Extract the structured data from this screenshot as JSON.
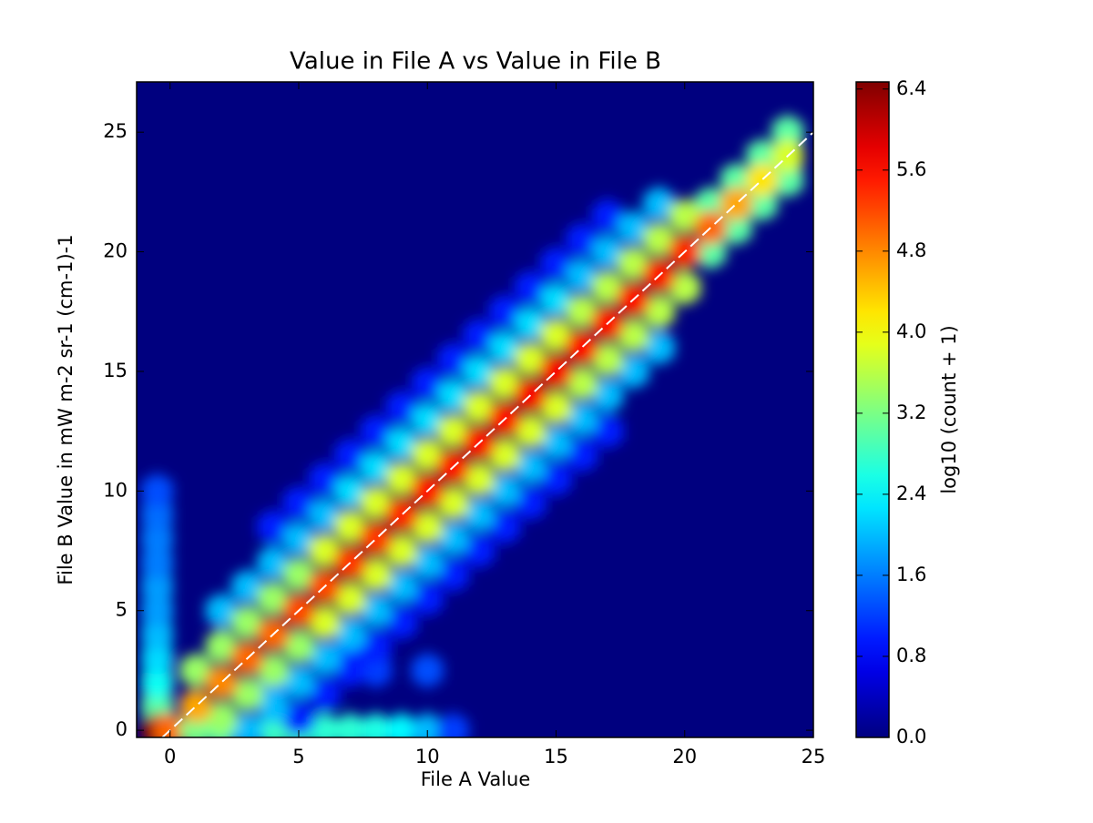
{
  "chart_data": {
    "type": "hexbin",
    "title": "Value in File A vs Value in File B",
    "xlabel": "File A Value",
    "ylabel": "File B Value in mW m-2 sr-1 (cm-1)-1",
    "colorbar_label": "log10 (count + 1)",
    "colormap": "jet",
    "xlim": [
      -1.3,
      25
    ],
    "ylim": [
      -0.3,
      27.1
    ],
    "xticks": [
      0,
      5,
      10,
      15,
      20,
      25
    ],
    "yticks": [
      0,
      5,
      10,
      15,
      20,
      25
    ],
    "clim": [
      0,
      6.47
    ],
    "cticks": [
      {
        "value": 0,
        "label": "0.0"
      },
      0.8,
      1.6,
      2.4,
      3.2,
      {
        "value": 4,
        "label": "4.0"
      },
      4.8,
      5.6,
      6.4
    ],
    "x": [
      -0.5,
      -0.5,
      -0.5,
      -0.5,
      -0.5,
      -0.5,
      -0.5,
      -0.5,
      -0.5,
      -0.5,
      -0.5,
      0,
      1,
      2,
      3,
      4,
      5,
      6,
      7,
      8,
      9,
      10,
      11,
      4,
      6,
      8,
      10,
      7,
      5,
      6,
      7,
      8,
      9,
      10,
      11,
      12,
      13,
      14,
      15,
      16,
      17,
      4,
      5,
      6,
      7,
      8,
      9,
      10,
      11,
      12,
      13,
      14,
      15,
      16,
      17,
      3,
      4,
      5,
      6,
      7,
      8,
      9,
      10,
      11,
      12,
      13,
      14,
      15,
      16,
      17,
      18,
      19,
      2,
      3,
      4,
      5,
      6,
      7,
      8,
      9,
      10,
      11,
      12,
      13,
      14,
      15,
      16,
      17,
      18,
      19,
      21,
      22,
      23,
      24,
      21,
      22,
      23,
      24,
      2,
      3,
      4,
      5,
      6,
      7,
      8,
      9,
      10,
      11,
      12,
      13,
      14,
      15,
      16,
      17,
      18,
      19,
      20,
      1,
      2,
      3,
      4,
      5,
      6,
      7,
      8,
      9,
      10,
      11,
      12,
      13,
      14,
      15,
      16,
      17,
      18,
      19,
      20,
      1,
      2,
      3,
      4,
      5,
      6,
      7,
      8,
      9,
      10,
      11,
      12,
      13,
      14,
      15,
      16,
      17,
      18,
      19,
      20,
      21,
      22,
      23,
      24
    ],
    "y": [
      1,
      2,
      3,
      4,
      5,
      6,
      7,
      8,
      9,
      10,
      0,
      0,
      0,
      0,
      0,
      0,
      0,
      0,
      0,
      0,
      0,
      0,
      0,
      2,
      1.5,
      2.5,
      2.5,
      3.2,
      0.5,
      1.5,
      2.5,
      3.5,
      4.5,
      5.5,
      6.5,
      7.5,
      8.5,
      9.5,
      10.5,
      11.5,
      12.5,
      8.5,
      9.5,
      10.5,
      11.5,
      12.5,
      13.5,
      14.5,
      15.5,
      16.5,
      17.5,
      18.5,
      19.5,
      20.5,
      21.5,
      0,
      1,
      2,
      3,
      4,
      5,
      6,
      7,
      8,
      9,
      10,
      11,
      12,
      13,
      14,
      15,
      16,
      5,
      6,
      7,
      8,
      9,
      10,
      11,
      12,
      13,
      14,
      15,
      16,
      17,
      18,
      19,
      20,
      21,
      22,
      22,
      23,
      24,
      25,
      20,
      21,
      22,
      23,
      0.5,
      1.5,
      2.5,
      3.5,
      4.5,
      5.5,
      6.5,
      7.5,
      8.5,
      9.5,
      10.5,
      11.5,
      12.5,
      13.5,
      14.5,
      15.5,
      16.5,
      17.5,
      18.5,
      2.5,
      3.5,
      4.5,
      5.5,
      6.5,
      7.5,
      8.5,
      9.5,
      10.5,
      11.5,
      12.5,
      13.5,
      14.5,
      15.5,
      16.5,
      17.5,
      18.5,
      19.5,
      20.5,
      21.5,
      1,
      2,
      3,
      4,
      5,
      6,
      7,
      8,
      9,
      10,
      11,
      12,
      13,
      14,
      15,
      16,
      17,
      18,
      19,
      20,
      21,
      22,
      23,
      24
    ],
    "values": [
      3.0,
      2.5,
      2.2,
      2.0,
      1.8,
      1.8,
      1.6,
      1.6,
      1.5,
      1.3,
      6.4,
      5.0,
      3.2,
      3.0,
      2.8,
      2.8,
      2.8,
      2.7,
      2.7,
      2.6,
      2.4,
      2.0,
      1.2,
      1.3,
      1.6,
      1.2,
      1.3,
      1.0,
      1.0,
      1.0,
      1.0,
      1.0,
      1.0,
      1.0,
      1.0,
      1.0,
      1.0,
      1.0,
      1.0,
      1.0,
      1.0,
      1.0,
      1.0,
      1.0,
      1.0,
      1.0,
      1.0,
      1.0,
      1.0,
      1.0,
      1.0,
      1.0,
      1.0,
      1.0,
      1.0,
      2.0,
      2.0,
      2.0,
      2.0,
      2.0,
      2.0,
      2.0,
      2.0,
      2.0,
      2.0,
      2.0,
      2.0,
      2.0,
      2.0,
      2.0,
      2.0,
      2.0,
      2.0,
      2.0,
      2.0,
      2.0,
      2.0,
      2.2,
      2.2,
      2.2,
      2.2,
      2.2,
      2.2,
      2.2,
      2.2,
      2.2,
      2.0,
      2.0,
      2.0,
      2.0,
      3.0,
      3.0,
      3.0,
      3.0,
      3.0,
      3.0,
      3.0,
      3.0,
      3.4,
      3.4,
      3.4,
      3.4,
      3.8,
      3.8,
      3.8,
      3.8,
      3.8,
      3.8,
      3.8,
      3.8,
      3.8,
      3.8,
      3.6,
      3.6,
      3.6,
      3.6,
      3.6,
      3.4,
      3.4,
      3.4,
      3.4,
      3.4,
      3.8,
      3.8,
      3.8,
      3.8,
      3.8,
      3.8,
      3.8,
      3.8,
      3.8,
      3.8,
      3.6,
      3.6,
      3.6,
      3.6,
      3.6,
      4.6,
      4.8,
      5.0,
      5.0,
      5.2,
      5.2,
      5.3,
      5.3,
      5.4,
      5.5,
      5.5,
      5.6,
      5.6,
      5.7,
      5.7,
      5.6,
      5.6,
      5.6,
      5.5,
      5.4,
      5.0,
      4.6,
      4.2,
      3.8
    ]
  }
}
